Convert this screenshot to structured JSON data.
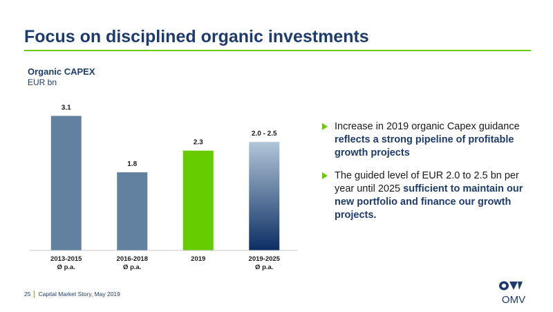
{
  "slide": {
    "title": "Focus on disciplined organic investments",
    "subtitle": "Organic CAPEX",
    "unit": "EUR bn"
  },
  "chart_data": {
    "type": "bar",
    "title": "Organic CAPEX",
    "ylabel": "EUR bn",
    "ylim": [
      0,
      3.3
    ],
    "categories": [
      [
        "2013-2015",
        "Ø p.a."
      ],
      [
        "2016-2018",
        "Ø p.a."
      ],
      [
        "2019"
      ],
      [
        "2019-2025",
        "Ø p.a."
      ]
    ],
    "values": [
      3.1,
      1.8,
      2.3,
      2.5
    ],
    "data_labels": [
      "3.1",
      "1.8",
      "2.3",
      "2.0 - 2.5"
    ],
    "ranges": [
      null,
      null,
      null,
      [
        2.0,
        2.5
      ]
    ],
    "colors": [
      "#62809f",
      "#62809f",
      "#66cc00",
      "gradient:#b3c6d9-#0b2e62"
    ]
  },
  "bullets": [
    {
      "text": "Increase in 2019 organic Capex guidance ",
      "highlight": "reflects a strong pipeline of profitable growth projects",
      "tail": ""
    },
    {
      "text": "The guided level of EUR 2.0 to 2.5 bn per year until 2025 ",
      "highlight": "sufficient to maintain our new portfolio and finance our growth projects.",
      "tail": ""
    }
  ],
  "footer": {
    "page_number": "25",
    "text": "Capital Market Story, May 2019"
  },
  "logo": {
    "wordmark": "OMV"
  },
  "colors": {
    "brand_blue": "#1d3b6e",
    "brand_green": "#66cc00",
    "bar_gray_blue": "#62809f"
  }
}
